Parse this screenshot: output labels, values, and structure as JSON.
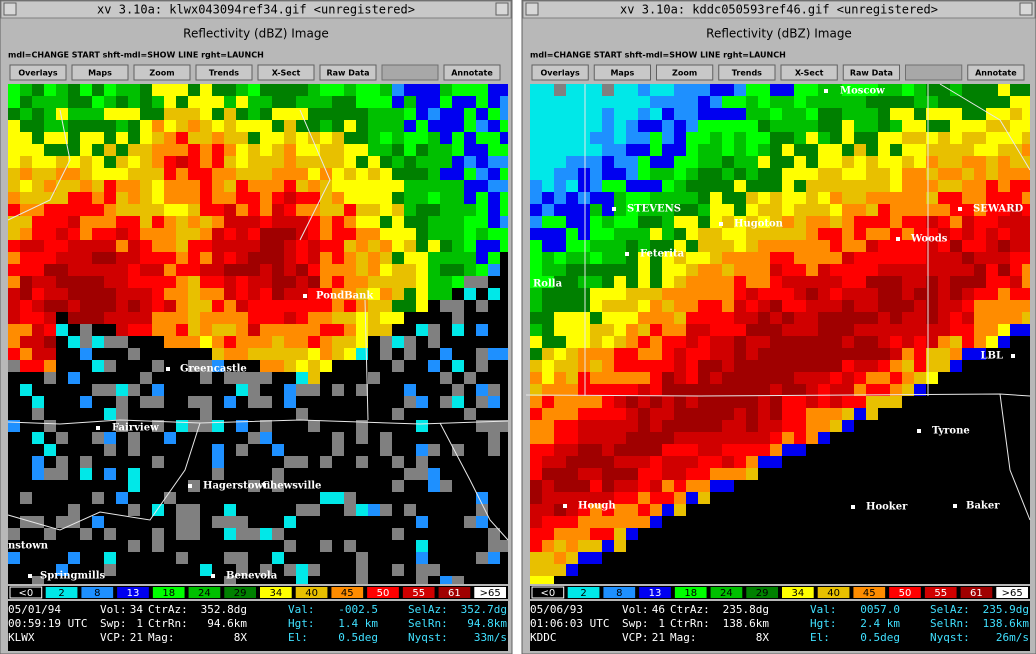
{
  "windows": [
    {
      "title": "xv 3.10a: klwx043094ref34.gif <unregistered>",
      "heading": "Reflectivity (dBZ) Image",
      "hint": "mdl=CHANGE START shft-mdl=SHOW LINE rght=LAUNCH",
      "buttons": [
        "Overlays",
        "Maps",
        "Zoom",
        "Trends",
        "X-Sect",
        "Raw Data",
        "Annotate"
      ],
      "places": [
        "PondBank",
        "Greencastle",
        "Fairview",
        "Hagerstown",
        "Chewsville",
        "nstown",
        "Springmills",
        "Benevola"
      ],
      "scale": [
        "<0",
        "2",
        "8",
        "13",
        "18",
        "24",
        "29",
        "34",
        "40",
        "45",
        "50",
        "55",
        "61",
        ">65"
      ],
      "status": [
        [
          "05/01/94",
          "Vol:",
          "34",
          "CtrAz:",
          "352.8dg",
          "Val:",
          "-002.5",
          "SelAz:",
          "352.7dg"
        ],
        [
          "00:59:19 UTC",
          "Swp:",
          "1",
          "CtrRn:",
          "94.6km",
          "Hgt:",
          "1.4 km",
          "SelRn:",
          "94.8km"
        ],
        [
          "KLWX",
          "VCP:",
          "21",
          "Mag:",
          "8X",
          "El:",
          "0.5deg",
          "Nyqst:",
          "33m/s"
        ]
      ]
    },
    {
      "title": "xv 3.10a: kddc050593ref46.gif <unregistered>",
      "heading": "Reflectivity (dBZ) Image",
      "hint": "mdl=CHANGE START shft-mdl=SHOW LINE rght=LAUNCH",
      "buttons": [
        "Overlays",
        "Maps",
        "Zoom",
        "Trends",
        "X-Sect",
        "Raw Data",
        "Annotate"
      ],
      "places": [
        "Moscow",
        "STEVENS",
        "Hugoton",
        "SEWARD",
        "Feterita",
        "Woods",
        "Rolla",
        "LBL",
        "Tyrone",
        "Hooker",
        "Baker",
        "Hough"
      ],
      "scale": [
        "<0",
        "2",
        "8",
        "13",
        "18",
        "24",
        "29",
        "34",
        "40",
        "45",
        "50",
        "55",
        "61",
        ">65"
      ],
      "status": [
        [
          "05/06/93",
          "Vol:",
          "46",
          "CtrAz:",
          "235.8dg",
          "Val:",
          "0057.0",
          "SelAz:",
          "235.9dg"
        ],
        [
          "01:06:03 UTC",
          "Swp:",
          "1",
          "CtrRn:",
          "138.6km",
          "Hgt:",
          "2.4 km",
          "SelRn:",
          "138.6km"
        ],
        [
          "KDDC",
          "VCP:",
          "21",
          "Mag:",
          "8X",
          "El:",
          "0.5deg",
          "Nyqst:",
          "26m/s"
        ]
      ]
    }
  ]
}
